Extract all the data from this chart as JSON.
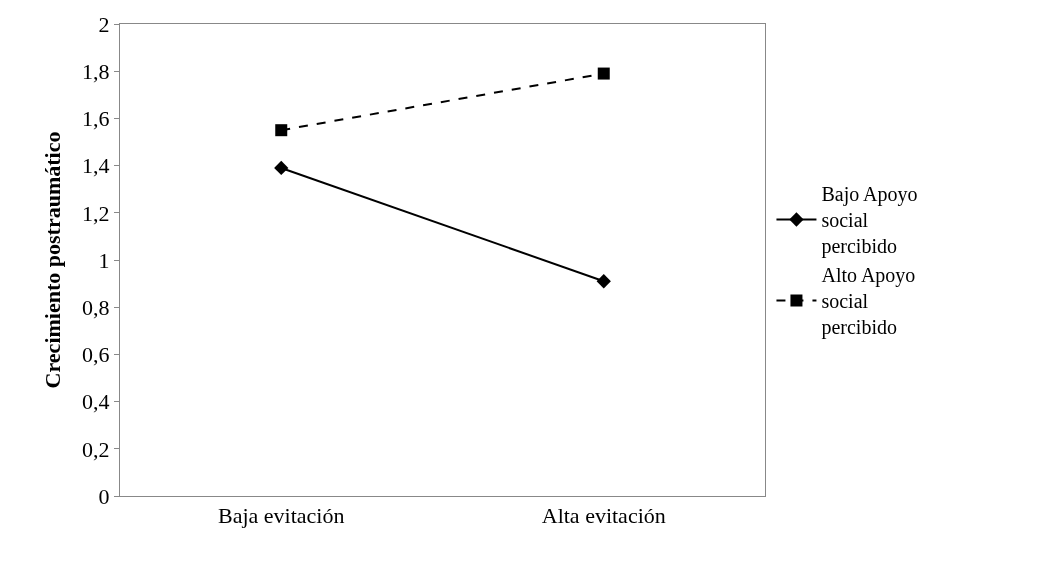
{
  "chart_data": {
    "type": "line",
    "ylabel": "Crecimiento postraumático",
    "categories": [
      "Baja evitación",
      "Alta evitación"
    ],
    "series": [
      {
        "name": "Bajo Apoyo social percibido",
        "color": "#000000",
        "values": [
          1.39,
          0.91
        ],
        "marker": "diamond",
        "line_style": "solid"
      },
      {
        "name": "Alto Apoyo social percibido",
        "color": "#000000",
        "values": [
          1.55,
          1.79
        ],
        "marker": "square",
        "line_style": "dashed"
      }
    ],
    "ylim": [
      0,
      2
    ],
    "yticks": [
      0,
      {
        "value": 0.2,
        "label": "0,2"
      },
      {
        "value": 0.4,
        "label": "0,4"
      },
      {
        "value": 0.6,
        "label": "0,6"
      },
      {
        "value": 0.8,
        "label": "0,8"
      },
      1,
      {
        "value": 1.2,
        "label": "1,2"
      },
      {
        "value": 1.4,
        "label": "1,4"
      },
      {
        "value": 1.6,
        "label": "1,6"
      },
      {
        "value": 1.8,
        "label": "1,8"
      },
      2
    ],
    "legend": "right"
  }
}
